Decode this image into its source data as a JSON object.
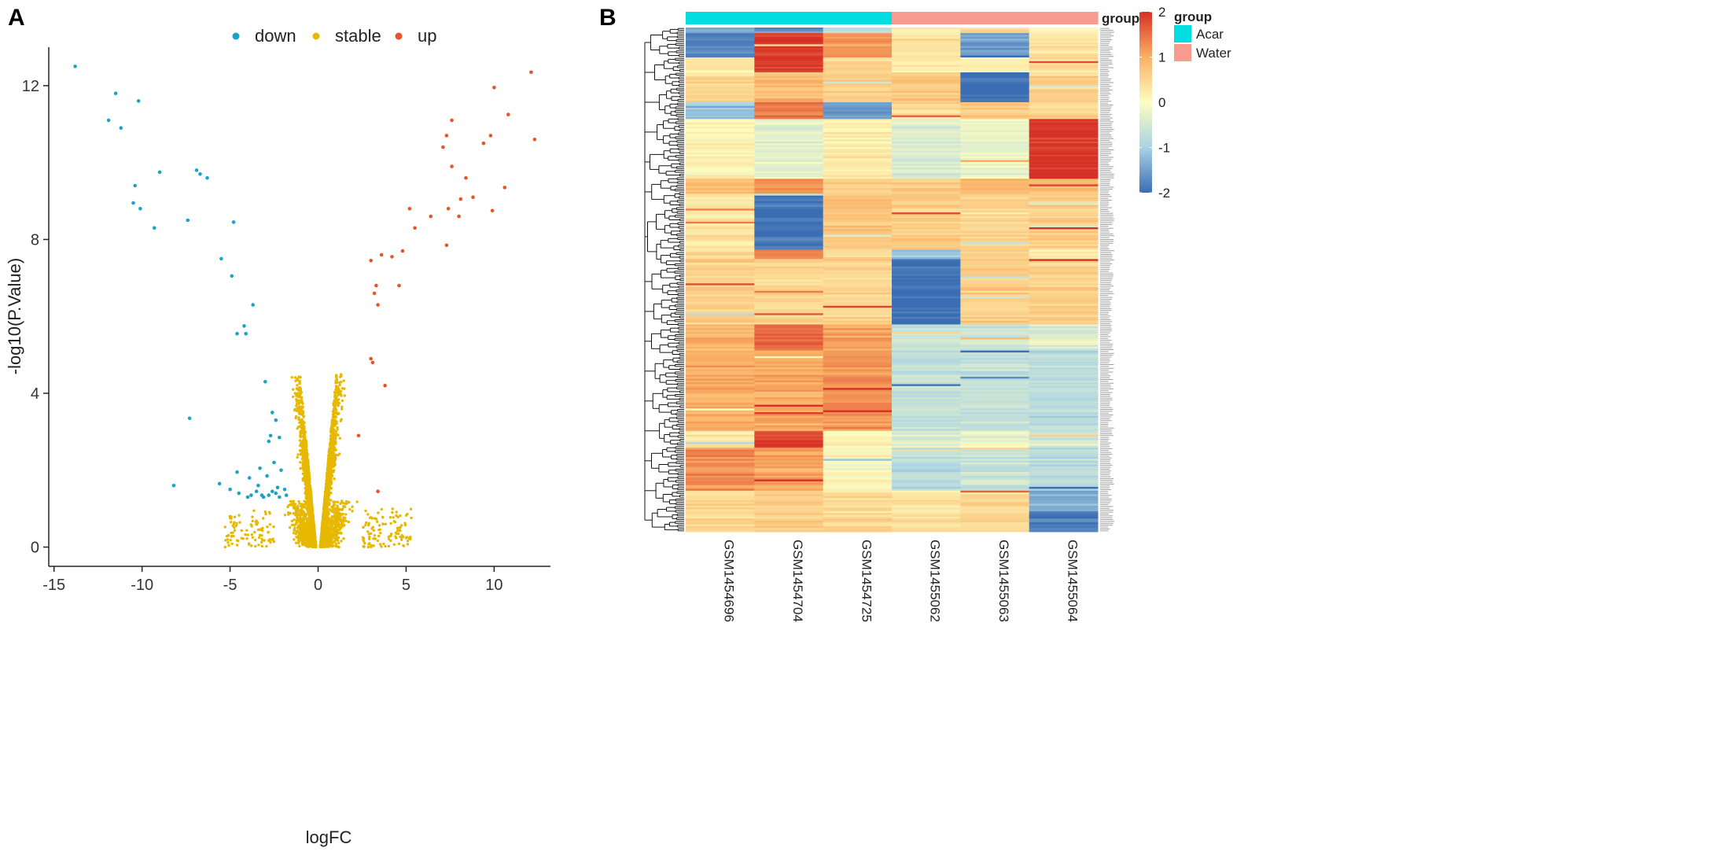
{
  "chart_data": [
    {
      "panel": "A",
      "type": "scatter",
      "title": "",
      "xlabel": "logFC",
      "ylabel": "-log10(P.Value)",
      "xlim": [
        -15.3,
        13.2
      ],
      "ylim": [
        -0.5,
        13.0
      ],
      "xticks": [
        -15,
        -10,
        -5,
        0,
        5,
        10
      ],
      "yticks": [
        0,
        4,
        8,
        12
      ],
      "legend": {
        "position": "top",
        "entries": [
          "down",
          "stable",
          "up"
        ]
      },
      "colors": {
        "down": "#1aa3c7",
        "stable": "#e6b800",
        "up": "#e8542a"
      },
      "series": [
        {
          "name": "down",
          "points": [
            [
              -13.8,
              12.5
            ],
            [
              -11.5,
              11.8
            ],
            [
              -10.2,
              11.6
            ],
            [
              -11.9,
              11.1
            ],
            [
              -11.2,
              10.9
            ],
            [
              -9,
              9.75
            ],
            [
              -6.9,
              9.8
            ],
            [
              -6.7,
              9.7
            ],
            [
              -6.3,
              9.6
            ],
            [
              -10.4,
              9.4
            ],
            [
              -10.1,
              8.8
            ],
            [
              -10.5,
              8.95
            ],
            [
              -7.4,
              8.5
            ],
            [
              -4.8,
              8.45
            ],
            [
              -9.3,
              8.3
            ],
            [
              -5.5,
              7.5
            ],
            [
              -4.9,
              7.05
            ],
            [
              -3.7,
              6.3
            ],
            [
              -4.2,
              5.75
            ],
            [
              -4.6,
              5.55
            ],
            [
              -4.1,
              5.55
            ],
            [
              -3,
              4.3
            ],
            [
              -7.3,
              3.35
            ],
            [
              -2.6,
              3.5
            ],
            [
              -2.4,
              3.3
            ],
            [
              -2.7,
              2.9
            ],
            [
              -2.8,
              2.75
            ],
            [
              -2.2,
              2.85
            ],
            [
              -2.5,
              2.2
            ],
            [
              -3.3,
              2.05
            ],
            [
              -2.1,
              2
            ],
            [
              -3.9,
              1.8
            ],
            [
              -4.6,
              1.95
            ],
            [
              -5.6,
              1.65
            ],
            [
              -2.9,
              1.85
            ],
            [
              -3.4,
              1.6
            ],
            [
              -2.3,
              1.55
            ],
            [
              -1.9,
              1.5
            ],
            [
              -5,
              1.5
            ],
            [
              -3.8,
              1.35
            ],
            [
              -2.8,
              1.35
            ],
            [
              -8.2,
              1.6
            ],
            [
              -4.5,
              1.4
            ],
            [
              -2.4,
              1.4
            ],
            [
              -3.1,
              1.3
            ],
            [
              -4,
              1.3
            ],
            [
              -2.2,
              1.3
            ],
            [
              -3.5,
              1.45
            ],
            [
              -1.8,
              1.35
            ],
            [
              -2.6,
              1.45
            ],
            [
              -3.2,
              1.35
            ]
          ]
        },
        {
          "name": "up",
          "points": [
            [
              12.1,
              12.35
            ],
            [
              10,
              11.95
            ],
            [
              10.8,
              11.25
            ],
            [
              7.6,
              11.1
            ],
            [
              7.3,
              10.7
            ],
            [
              9.8,
              10.7
            ],
            [
              9.4,
              10.5
            ],
            [
              12.3,
              10.6
            ],
            [
              7.1,
              10.4
            ],
            [
              7.6,
              9.9
            ],
            [
              8.4,
              9.6
            ],
            [
              10.6,
              9.35
            ],
            [
              8.1,
              9.05
            ],
            [
              8.8,
              9.1
            ],
            [
              7.4,
              8.8
            ],
            [
              9.9,
              8.75
            ],
            [
              5.2,
              8.8
            ],
            [
              6.4,
              8.6
            ],
            [
              8,
              8.6
            ],
            [
              5.5,
              8.3
            ],
            [
              7.3,
              7.85
            ],
            [
              4.8,
              7.7
            ],
            [
              3.6,
              7.6
            ],
            [
              4.2,
              7.55
            ],
            [
              3,
              7.45
            ],
            [
              3.3,
              6.8
            ],
            [
              3.2,
              6.6
            ],
            [
              4.6,
              6.8
            ],
            [
              3.4,
              6.3
            ],
            [
              3,
              4.9
            ],
            [
              3.1,
              4.8
            ],
            [
              3.8,
              4.2
            ],
            [
              2.3,
              2.9
            ],
            [
              3.4,
              1.45
            ]
          ]
        },
        {
          "name": "stable",
          "description": "thousands of non-significant genes forming a volcano-shaped cloud",
          "n": 5200,
          "seed": 7
        }
      ]
    },
    {
      "panel": "B",
      "type": "heatmap",
      "samples": [
        "GSM1454696",
        "GSM1454704",
        "GSM1454725",
        "GSM1455062",
        "GSM1455063",
        "GSM1455064"
      ],
      "sample_groups": [
        "Acar",
        "Acar",
        "Acar",
        "Water",
        "Water",
        "Water"
      ],
      "group_annotation_title": "group",
      "group_legend": {
        "title": "group",
        "entries": [
          {
            "label": "Acar",
            "color": "#00dde0"
          },
          {
            "label": "Water",
            "color": "#f99a8e"
          }
        ]
      },
      "color_scale": {
        "min": -2,
        "max": 2,
        "ticks": [
          "2",
          "1",
          "0",
          "-1",
          "-2"
        ],
        "colors": [
          "#3b6db3",
          "#a9d3e4",
          "#fdfdbf",
          "#fab064",
          "#d73027"
        ]
      },
      "n_rows": 270,
      "row_labels_visible": false,
      "clustered_rows": true,
      "row_blocks": [
        {
          "start": 0.0,
          "end": 0.01,
          "values": [
            -1.3,
            -1.6,
            -0.8,
            0.3,
            0.5,
            0.2
          ]
        },
        {
          "start": 0.01,
          "end": 0.06,
          "values": [
            -1.7,
            1.9,
            1.2,
            0.3,
            -1.5,
            0.4
          ]
        },
        {
          "start": 0.06,
          "end": 0.09,
          "values": [
            0.3,
            1.9,
            0.5,
            0.2,
            0.1,
            0.4
          ]
        },
        {
          "start": 0.09,
          "end": 0.15,
          "values": [
            0.5,
            0.8,
            0.6,
            0.7,
            -2.0,
            0.6
          ]
        },
        {
          "start": 0.15,
          "end": 0.18,
          "values": [
            -1.2,
            1.4,
            -1.6,
            0.4,
            0.6,
            0.5
          ]
        },
        {
          "start": 0.18,
          "end": 0.3,
          "values": [
            0.1,
            -0.3,
            0.2,
            -0.4,
            -0.2,
            2.0
          ]
        },
        {
          "start": 0.3,
          "end": 0.33,
          "values": [
            0.8,
            1.3,
            0.6,
            0.6,
            0.9,
            0.8
          ]
        },
        {
          "start": 0.33,
          "end": 0.44,
          "values": [
            0.3,
            -2.0,
            0.7,
            0.6,
            0.5,
            0.6
          ]
        },
        {
          "start": 0.44,
          "end": 0.46,
          "values": [
            0.4,
            1.2,
            0.4,
            -1.2,
            0.5,
            0.1
          ]
        },
        {
          "start": 0.46,
          "end": 0.59,
          "values": [
            0.6,
            0.5,
            0.5,
            -2.0,
            0.6,
            0.6
          ]
        },
        {
          "start": 0.59,
          "end": 0.64,
          "values": [
            0.9,
            1.5,
            1.1,
            -0.6,
            -0.6,
            -0.4
          ]
        },
        {
          "start": 0.64,
          "end": 0.8,
          "values": [
            1.0,
            1.0,
            1.2,
            -0.7,
            -0.7,
            -0.8
          ]
        },
        {
          "start": 0.8,
          "end": 0.835,
          "values": [
            0.3,
            1.8,
            0.1,
            -0.4,
            -0.2,
            -0.5
          ]
        },
        {
          "start": 0.835,
          "end": 0.92,
          "values": [
            1.3,
            1.1,
            0.0,
            -0.8,
            -0.6,
            -0.8
          ]
        },
        {
          "start": 0.92,
          "end": 0.96,
          "values": [
            0.5,
            0.6,
            0.4,
            0.3,
            0.4,
            -1.4
          ]
        },
        {
          "start": 0.96,
          "end": 1.0,
          "values": [
            0.5,
            0.6,
            0.5,
            0.4,
            0.5,
            -1.8
          ]
        }
      ],
      "seed": 11
    }
  ],
  "panel_labels": {
    "a": "A",
    "b": "B"
  }
}
